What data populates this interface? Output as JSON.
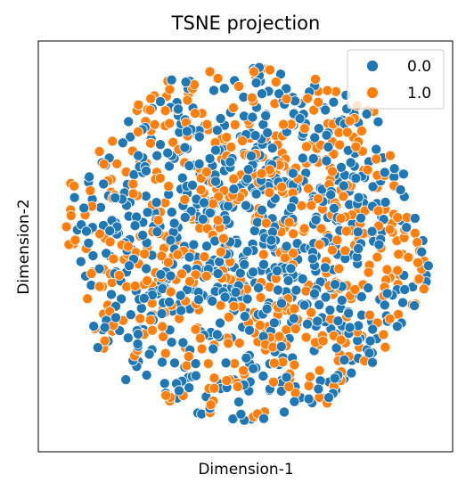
{
  "chart_data": {
    "type": "scatter",
    "title": "TSNE projection",
    "xlabel": "Dimension-1",
    "ylabel": "Dimension-2",
    "xticks": [],
    "yticks": [],
    "xlim": [
      -1.05,
      1.05
    ],
    "ylim": [
      -1.05,
      1.05
    ],
    "grid": false,
    "legend_position": "top-right",
    "series": [
      {
        "name": "0.0",
        "color": "#1f77b4",
        "points": []
      },
      {
        "name": "1.0",
        "color": "#ff7f0e",
        "points": []
      }
    ]
  }
}
